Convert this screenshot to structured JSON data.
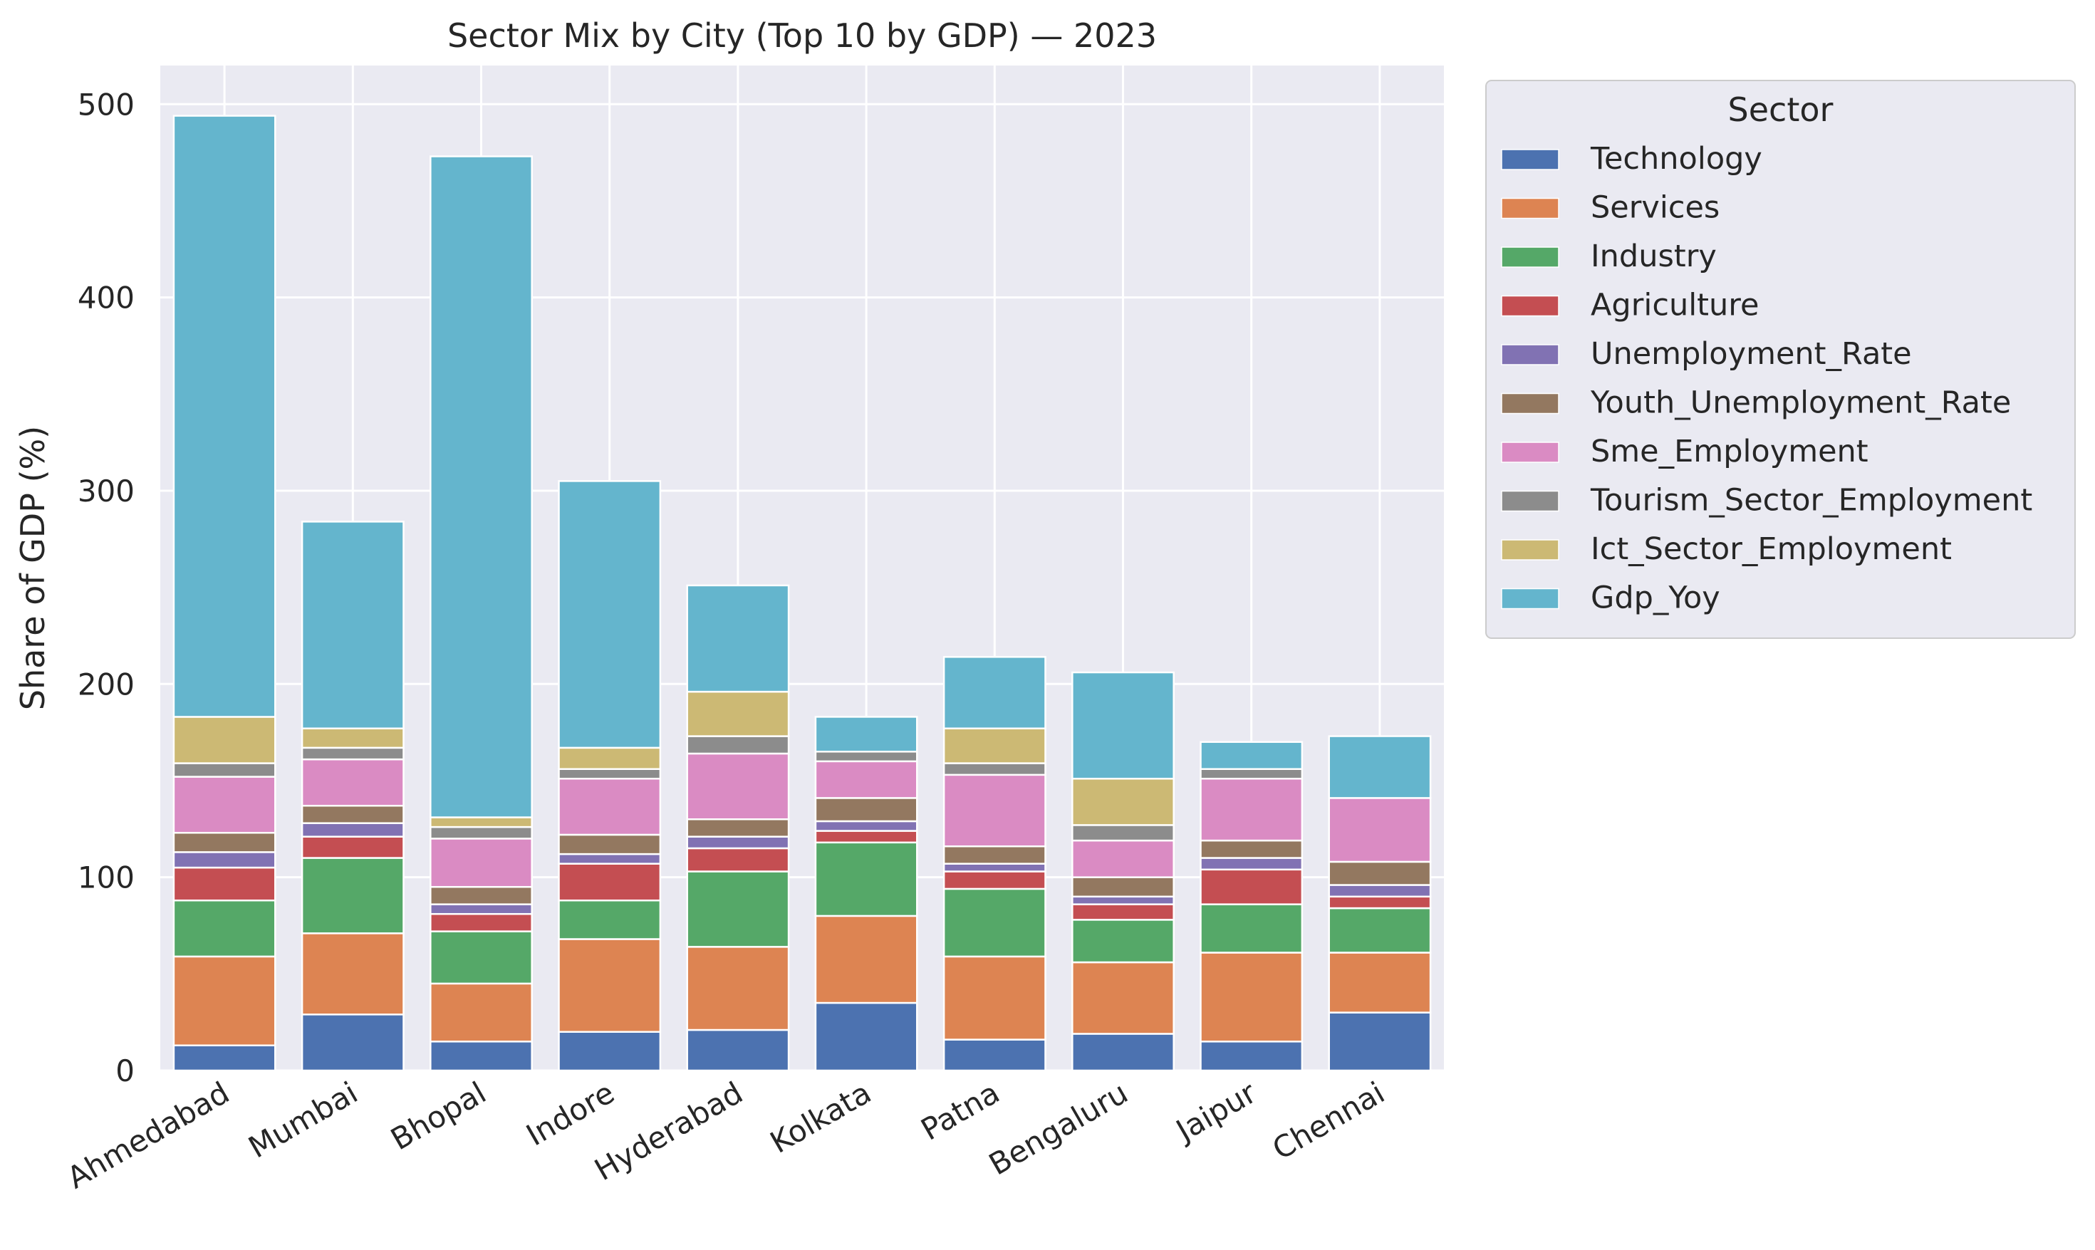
{
  "chart_data": {
    "type": "bar",
    "stacked": true,
    "title": "Sector Mix by City (Top 10 by GDP) — 2023",
    "xlabel": "",
    "ylabel": "Share of GDP (%)",
    "ylim": [
      0,
      520
    ],
    "yticks": [
      0,
      100,
      200,
      300,
      400,
      500
    ],
    "grid": true,
    "legend": {
      "title": "Sector",
      "placement": "outside-top-right"
    },
    "categories": [
      "Ahmedabad",
      "Mumbai",
      "Bhopal",
      "Indore",
      "Hyderabad",
      "Kolkata",
      "Patna",
      "Bengaluru",
      "Jaipur",
      "Chennai"
    ],
    "series": [
      {
        "name": "Technology",
        "color": "#4c72b0",
        "values": [
          13,
          29,
          15,
          20,
          21,
          35,
          16,
          19,
          15,
          30
        ]
      },
      {
        "name": "Services",
        "color": "#dd8452",
        "values": [
          46,
          42,
          30,
          48,
          43,
          45,
          43,
          37,
          46,
          31
        ]
      },
      {
        "name": "Industry",
        "color": "#55a868",
        "values": [
          29,
          39,
          27,
          20,
          39,
          38,
          35,
          22,
          25,
          23
        ]
      },
      {
        "name": "Agriculture",
        "color": "#c44e52",
        "values": [
          17,
          11,
          9,
          19,
          12,
          6,
          9,
          8,
          18,
          6
        ]
      },
      {
        "name": "Unemployment_Rate",
        "color": "#8172b3",
        "values": [
          8,
          7,
          5,
          5,
          6,
          5,
          4,
          4,
          6,
          6
        ]
      },
      {
        "name": "Youth_Unemployment_Rate",
        "color": "#937860",
        "values": [
          10,
          9,
          9,
          10,
          9,
          12,
          9,
          10,
          9,
          12
        ]
      },
      {
        "name": "Sme_Employment",
        "color": "#da8bc3",
        "values": [
          29,
          24,
          25,
          29,
          34,
          19,
          37,
          19,
          32,
          33
        ]
      },
      {
        "name": "Tourism_Sector_Employment",
        "color": "#8c8c8c",
        "values": [
          7,
          6,
          6,
          5,
          9,
          5,
          6,
          8,
          5,
          0
        ]
      },
      {
        "name": "Ict_Sector_Employment",
        "color": "#ccb974",
        "values": [
          24,
          10,
          5,
          11,
          23,
          0,
          18,
          24,
          0,
          0
        ]
      },
      {
        "name": "Gdp_Yoy",
        "color": "#64b5cd",
        "values": [
          311,
          107,
          342,
          138,
          55,
          18,
          37,
          55,
          14,
          32
        ]
      }
    ]
  }
}
